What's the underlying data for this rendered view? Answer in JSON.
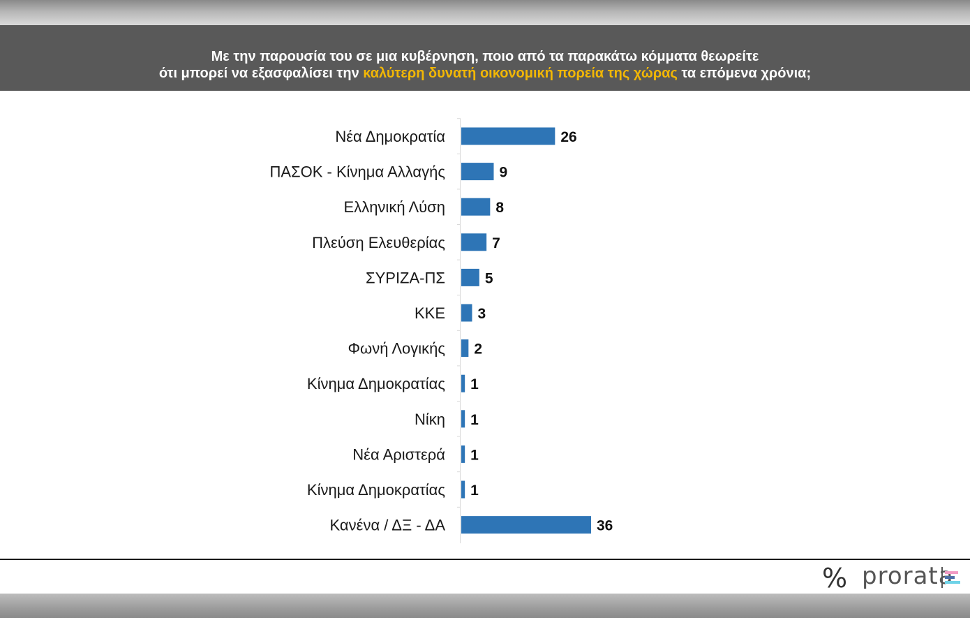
{
  "header": {
    "line1": "Με την παρουσία του σε μια κυβέρνηση, ποιο από τα παρακάτω κόμματα θεωρείτε",
    "line2_pre": "ότι μπορεί να εξασφαλίσει την ",
    "line2_highlight": "καλύτερη δυνατή οικονομική πορεία της χώρας",
    "line2_post": " τα επόμενα χρόνια;"
  },
  "logo": {
    "symbol": "%",
    "text": "prorata"
  },
  "colors": {
    "header_bg": "#595959",
    "highlight": "#f2b705",
    "bar": "#2e75b6"
  },
  "chart_data": {
    "type": "bar",
    "orientation": "horizontal",
    "categories": [
      "Νέα Δημοκρατία",
      "ΠΑΣΟΚ - Κίνημα Αλλαγής",
      "Ελληνική Λύση",
      "Πλεύση Ελευθερίας",
      "ΣΥΡΙΖΑ-ΠΣ",
      "ΚΚΕ",
      "Φωνή Λογικής",
      "Κίνημα Δημοκρατίας",
      "Νίκη",
      "Νέα Αριστερά",
      "Κίνημα Δημοκρατίας",
      "Κανένα / ΔΞ - ΔΑ"
    ],
    "values": [
      26,
      9,
      8,
      7,
      5,
      3,
      2,
      1,
      1,
      1,
      1,
      36
    ],
    "data_labels": [
      "26",
      "9",
      "8",
      "7",
      "5",
      "3",
      "2",
      "1",
      "1",
      "1",
      "1",
      "36"
    ],
    "title": "",
    "xlabel": "",
    "ylabel": "",
    "grid": false,
    "legend": "none"
  }
}
